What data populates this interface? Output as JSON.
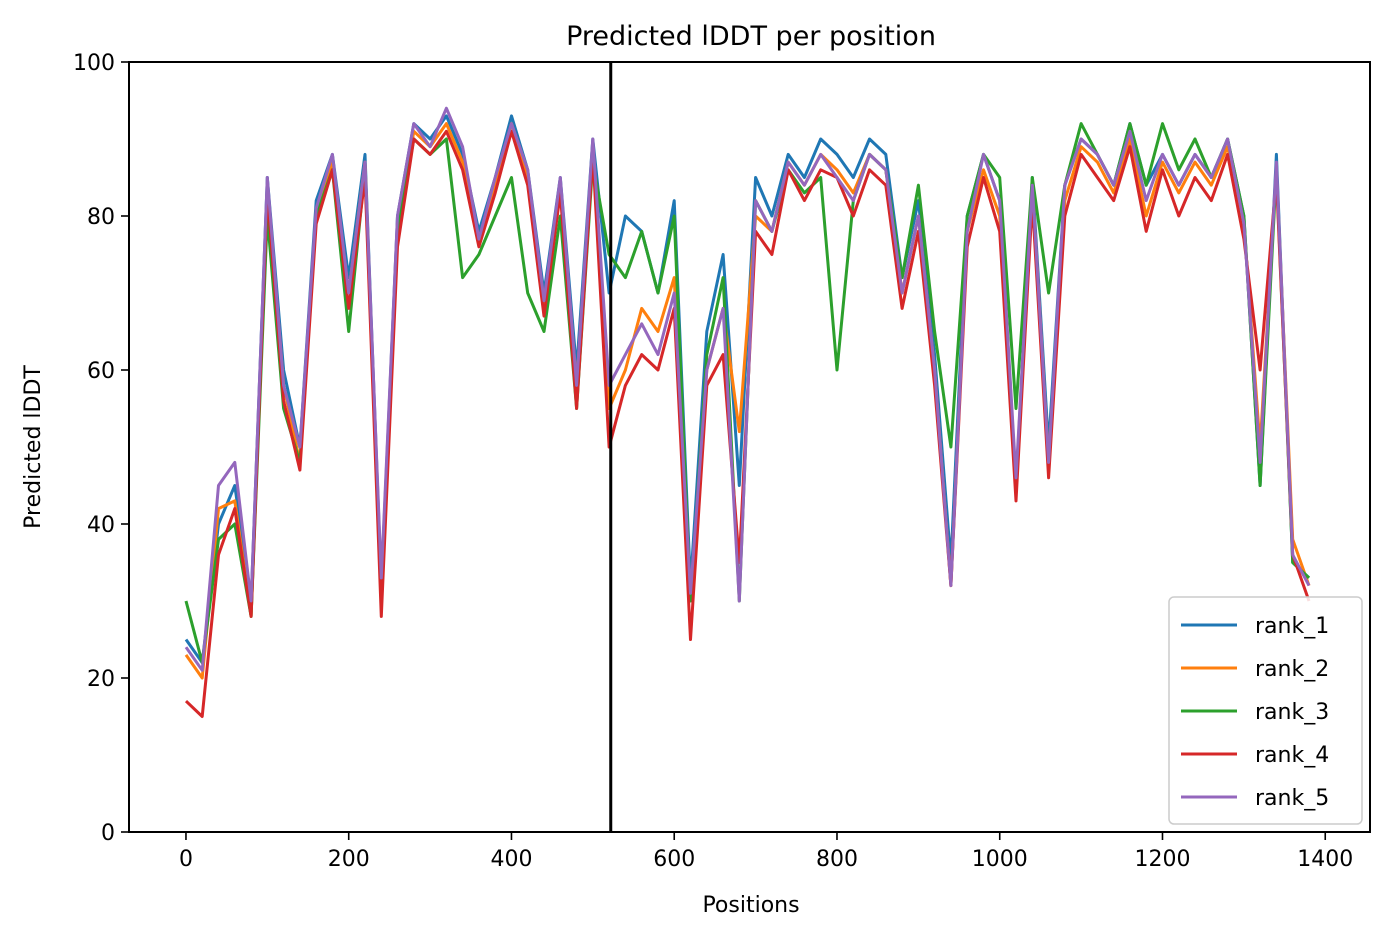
{
  "chart_data": {
    "type": "line",
    "title": "Predicted lDDT per position",
    "xlabel": "Positions",
    "ylabel": "Predicted lDDT",
    "xlim": [
      -70,
      1455
    ],
    "ylim": [
      0,
      100
    ],
    "xticks": [
      0,
      200,
      400,
      600,
      800,
      1000,
      1200,
      1400
    ],
    "yticks": [
      0,
      20,
      40,
      60,
      80,
      100
    ],
    "grid": false,
    "legend_position": "lower-right",
    "vline_x": 522,
    "x": [
      0,
      20,
      40,
      60,
      80,
      100,
      120,
      140,
      160,
      180,
      200,
      220,
      240,
      260,
      280,
      300,
      320,
      340,
      360,
      380,
      400,
      420,
      440,
      460,
      480,
      500,
      520,
      540,
      560,
      580,
      600,
      620,
      640,
      660,
      680,
      700,
      720,
      740,
      760,
      780,
      800,
      820,
      840,
      860,
      880,
      900,
      920,
      940,
      960,
      980,
      1000,
      1020,
      1040,
      1060,
      1080,
      1100,
      1120,
      1140,
      1160,
      1180,
      1200,
      1220,
      1240,
      1260,
      1280,
      1300,
      1320,
      1340,
      1360,
      1380
    ],
    "series": [
      {
        "name": "rank_1",
        "color": "#1f77b4",
        "values": [
          25,
          22,
          40,
          45,
          30,
          85,
          60,
          50,
          82,
          88,
          72,
          88,
          32,
          80,
          92,
          90,
          93,
          88,
          78,
          85,
          93,
          86,
          70,
          85,
          60,
          90,
          70,
          80,
          78,
          70,
          82,
          32,
          65,
          75,
          45,
          85,
          80,
          88,
          85,
          90,
          88,
          85,
          90,
          88,
          72,
          82,
          62,
          35,
          80,
          88,
          82,
          45,
          85,
          50,
          84,
          90,
          88,
          84,
          92,
          84,
          88,
          84,
          88,
          85,
          90,
          80,
          45,
          88,
          35,
          33
        ]
      },
      {
        "name": "rank_2",
        "color": "#ff7f0e",
        "values": [
          23,
          20,
          42,
          43,
          28,
          84,
          58,
          48,
          80,
          87,
          70,
          87,
          30,
          78,
          91,
          89,
          92,
          87,
          77,
          84,
          92,
          85,
          68,
          84,
          58,
          89,
          55,
          60,
          68,
          65,
          72,
          30,
          60,
          68,
          52,
          80,
          78,
          87,
          84,
          88,
          86,
          83,
          88,
          86,
          70,
          80,
          60,
          32,
          78,
          86,
          80,
          44,
          84,
          48,
          82,
          89,
          87,
          83,
          90,
          80,
          87,
          83,
          87,
          84,
          89,
          79,
          50,
          86,
          38,
          32
        ]
      },
      {
        "name": "rank_3",
        "color": "#2ca02c",
        "values": [
          30,
          22,
          38,
          40,
          28,
          80,
          55,
          48,
          80,
          86,
          65,
          86,
          31,
          78,
          90,
          88,
          90,
          72,
          75,
          80,
          85,
          70,
          65,
          80,
          55,
          87,
          75,
          72,
          78,
          70,
          80,
          30,
          62,
          72,
          30,
          82,
          78,
          86,
          83,
          85,
          60,
          82,
          88,
          86,
          72,
          84,
          65,
          50,
          80,
          88,
          85,
          55,
          85,
          70,
          84,
          92,
          88,
          84,
          92,
          84,
          92,
          86,
          90,
          85,
          90,
          80,
          45,
          86,
          35,
          33
        ]
      },
      {
        "name": "rank_4",
        "color": "#d62728",
        "values": [
          17,
          15,
          36,
          42,
          28,
          83,
          56,
          47,
          79,
          86,
          68,
          85,
          28,
          76,
          90,
          88,
          91,
          86,
          76,
          83,
          91,
          84,
          67,
          83,
          55,
          88,
          50,
          58,
          62,
          60,
          68,
          25,
          58,
          62,
          35,
          78,
          75,
          86,
          82,
          86,
          85,
          80,
          86,
          84,
          68,
          78,
          58,
          32,
          76,
          85,
          78,
          43,
          82,
          46,
          80,
          88,
          85,
          82,
          89,
          78,
          86,
          80,
          85,
          82,
          88,
          77,
          60,
          85,
          36,
          30
        ]
      },
      {
        "name": "rank_5",
        "color": "#9467bd",
        "values": [
          24,
          21,
          45,
          48,
          30,
          85,
          58,
          50,
          81,
          88,
          70,
          87,
          33,
          80,
          92,
          89,
          94,
          89,
          77,
          85,
          92,
          86,
          69,
          85,
          58,
          90,
          58,
          62,
          66,
          62,
          70,
          31,
          60,
          68,
          30,
          82,
          78,
          87,
          84,
          88,
          85,
          82,
          88,
          86,
          70,
          80,
          60,
          32,
          78,
          88,
          82,
          46,
          84,
          48,
          84,
          90,
          88,
          84,
          91,
          82,
          88,
          84,
          88,
          85,
          90,
          79,
          48,
          87,
          36,
          32
        ]
      }
    ]
  }
}
